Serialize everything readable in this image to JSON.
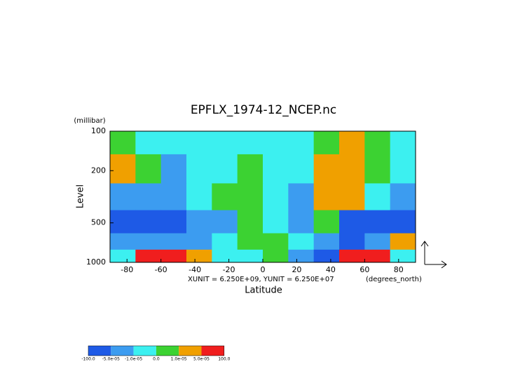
{
  "chart_data": {
    "type": "contour",
    "title": "EPFLX_1974-12_NCEP.nc",
    "y_unit": "(millibar)",
    "ylabel": "Level",
    "xlabel": "Latitude",
    "x_unit": "(degrees_north)",
    "note": "XUNIT = 6.250E+09, YUNIT = 6.250E+07",
    "xlim": [
      -90,
      90
    ],
    "xticks": [
      -80,
      -60,
      -40,
      -20,
      0,
      20,
      40,
      60,
      80
    ],
    "ylim": [
      1000,
      100
    ],
    "ylog": true,
    "yticks": [
      100,
      200,
      500,
      1000
    ],
    "x_edges": [
      -90,
      -75,
      -60,
      -45,
      -30,
      -15,
      0,
      15,
      30,
      45,
      60,
      75,
      90
    ],
    "y_edges": [
      100,
      150,
      250,
      400,
      600,
      800,
      1000
    ],
    "z": [
      [
        5e-06,
        -5e-06,
        -5e-06,
        -5e-06,
        -5e-06,
        -5e-06,
        -5e-06,
        -5e-06,
        5e-06,
        3e-05,
        5e-06,
        -5e-06
      ],
      [
        3e-05,
        5e-06,
        -3e-05,
        -5e-06,
        -5e-06,
        5e-06,
        -5e-06,
        -5e-06,
        3e-05,
        3e-05,
        5e-06,
        -5e-06
      ],
      [
        -3e-05,
        -3e-05,
        -3e-05,
        -5e-06,
        5e-06,
        5e-06,
        -5e-06,
        -3e-05,
        3e-05,
        3e-05,
        -5e-06,
        -3e-05
      ],
      [
        -8e-05,
        -8e-05,
        -8e-05,
        -3e-05,
        -3e-05,
        5e-06,
        -5e-06,
        -3e-05,
        5e-06,
        -8e-05,
        -8e-05,
        -8e-05
      ],
      [
        -3e-05,
        -3e-05,
        -3e-05,
        -3e-05,
        -5e-06,
        5e-06,
        5e-06,
        -5e-06,
        -3e-05,
        -8e-05,
        -3e-05,
        3e-05
      ],
      [
        -5e-06,
        8e-05,
        8e-05,
        3e-05,
        -5e-06,
        -5e-06,
        5e-06,
        -3e-05,
        -8e-05,
        8e-05,
        8e-05,
        -5e-06
      ]
    ],
    "levels": [
      {
        "value": -100,
        "label": "-100.0"
      },
      {
        "value": -5e-05,
        "label": "-5.0e-05"
      },
      {
        "value": -1e-05,
        "label": "-1.0e-05"
      },
      {
        "value": 0,
        "label": "0.0"
      },
      {
        "value": 1e-05,
        "label": "1.0e-05"
      },
      {
        "value": 5e-05,
        "label": "5.0e-05"
      },
      {
        "value": 100,
        "label": "100.0"
      }
    ],
    "colors": [
      "#1e5ae6",
      "#3c9cf0",
      "#3cf0f0",
      "#3cd232",
      "#f0a000",
      "#f01e1e"
    ]
  }
}
